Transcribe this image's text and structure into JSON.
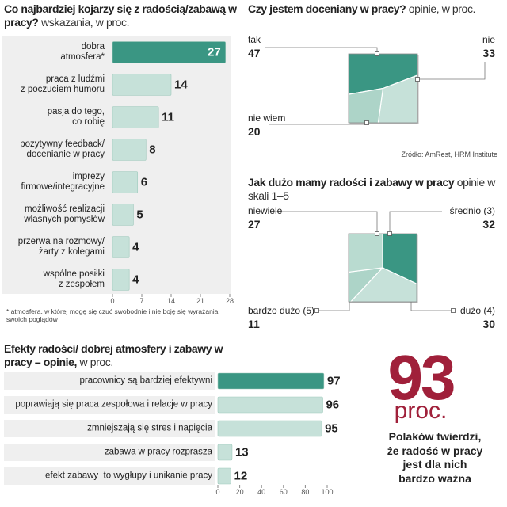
{
  "chart_data": [
    {
      "type": "bar",
      "orientation": "horizontal",
      "title": "Co najbardziej kojarzy się z radością/zabawą w pracy?",
      "subtitle": "wskazania, w proc.",
      "categories": [
        "dobra\natmosfera*",
        "praca z ludźmi\nz poczuciem humoru",
        "pasja do tego,\nco robię",
        "pozytywny feedback/\ndocenianie w pracy",
        "imprezy\nfirmowe/integracyjne",
        "możliwość realizacji\nwłasnych pomysłów",
        "przerwa na rozmowy/\nżarty z kolegami",
        "wspólne posiłki\nz zespołem"
      ],
      "values": [
        27,
        14,
        11,
        8,
        6,
        5,
        4,
        4
      ],
      "colors": [
        "#3a9683",
        "#c6e1d9",
        "#c6e1d9",
        "#c6e1d9",
        "#c6e1d9",
        "#c6e1d9",
        "#c6e1d9",
        "#c6e1d9"
      ],
      "xlim": [
        0,
        28
      ],
      "xticks": [
        0,
        7,
        14,
        21,
        28
      ],
      "footnote": "* atmosfera, w której mogę się czuć swobodnie i nie boję się wyrażania swoich poglądów"
    },
    {
      "type": "pie",
      "shape": "square",
      "title": "Czy jestem doceniany w pracy?",
      "subtitle": "opinie, w proc.",
      "categories": [
        "tak",
        "nie",
        "nie wiem"
      ],
      "values": [
        47,
        33,
        20
      ],
      "colors": [
        "#3a9683",
        "#c6e1d9",
        "#add4c8"
      ],
      "source": "Źródło: AmRest, HRM Institute"
    },
    {
      "type": "pie",
      "shape": "square",
      "title": "Jak dużo mamy radości i zabawy w pracy",
      "subtitle": "opinie w skali 1–5",
      "categories": [
        "średnio (3)",
        "dużo (4)",
        "bardzo dużo (5)",
        "niewiele"
      ],
      "values": [
        32,
        30,
        11,
        27
      ],
      "colors": [
        "#3a9683",
        "#c6e1d9",
        "#add4c8",
        "#b9dbd0"
      ]
    },
    {
      "type": "bar",
      "orientation": "horizontal",
      "title": "Efekty radości/ dobrej atmosfery i zabawy w pracy – opinie,",
      "subtitle": "w proc.",
      "categories": [
        "pracownicy są bardziej efektywni",
        "poprawiają się praca zespołowa i relacje w pracy",
        "zmniejszają się stres i napięcia",
        "zabawa w pracy rozprasza",
        "efekt zabawy  to wygłupy i unikanie pracy"
      ],
      "values": [
        97,
        96,
        95,
        13,
        12
      ],
      "colors": [
        "#3a9683",
        "#c6e1d9",
        "#c6e1d9",
        "#c6e1d9",
        "#c6e1d9"
      ],
      "xlim": [
        0,
        100
      ],
      "xticks": [
        0,
        20,
        40,
        60,
        80,
        100
      ]
    }
  ],
  "callout": {
    "value": 93,
    "unit": "proc.",
    "text": "Polaków twierdzi,\nże radość w pracy\njest dla nich\nbardzo ważna"
  }
}
